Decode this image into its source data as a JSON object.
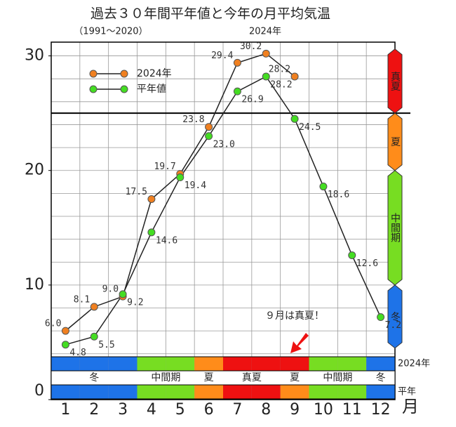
{
  "chart_data": {
    "type": "line",
    "title": "過去３０年間平年値と今年の月平均気温",
    "subtitle": "（1991～2020）",
    "year_label": "2024年",
    "x_label": "月",
    "categories": [
      "1",
      "2",
      "3",
      "4",
      "5",
      "6",
      "7",
      "8",
      "9",
      "10",
      "11",
      "12"
    ],
    "series": [
      {
        "name": "2024年",
        "color": "#f08020",
        "values": [
          6.0,
          8.1,
          9.0,
          17.5,
          19.7,
          23.8,
          29.4,
          30.2,
          28.2,
          null,
          null,
          null
        ],
        "value_labels": [
          "6.0",
          "8.1",
          "9.0",
          "17.5",
          "19.7",
          "23.8",
          "29.4",
          "30.2",
          "28.2",
          null,
          null,
          null
        ]
      },
      {
        "name": "平年値",
        "color": "#44dd22",
        "values": [
          4.8,
          5.5,
          9.2,
          14.6,
          19.4,
          23.0,
          26.9,
          28.2,
          24.5,
          18.6,
          12.6,
          7.2
        ],
        "value_labels": [
          "4.8",
          "5.5",
          "9.2",
          "14.6",
          "19.4",
          "23.0",
          "26.9",
          "28.2",
          "24.5",
          "18.6",
          "12.6",
          "7.2"
        ]
      }
    ],
    "ylim": [
      0,
      31.2
    ],
    "yticks": [
      0,
      10,
      20,
      30
    ],
    "grid_yticks": [
      2,
      4,
      6,
      8,
      10,
      12,
      14,
      16,
      18,
      20,
      22,
      24,
      26,
      28,
      30
    ],
    "reference_line": 25,
    "season_scale": [
      {
        "label": "真夏",
        "from": 25,
        "to": 30.6,
        "color": "#ee1111"
      },
      {
        "label": "夏",
        "from": 20,
        "to": 25,
        "color": "#ff8c1a"
      },
      {
        "label": "中間期",
        "from": 10,
        "to": 20,
        "color": "#77dd22"
      },
      {
        "label": "冬",
        "from": 4.5,
        "to": 10,
        "color": "#1e73e8"
      }
    ],
    "season_rows": [
      {
        "name": "2024年",
        "colors": [
          "#1e73e8",
          "#1e73e8",
          "#1e73e8",
          "#77dd22",
          "#77dd22",
          "#ff8c1a",
          "#ee1111",
          "#ee1111",
          "#ee1111",
          "#77dd22",
          "#77dd22",
          "#1e73e8"
        ]
      },
      {
        "name": "平年",
        "colors": [
          "#1e73e8",
          "#1e73e8",
          "#1e73e8",
          "#77dd22",
          "#77dd22",
          "#ff8c1a",
          "#ee1111",
          "#ee1111",
          "#ff8c1a",
          "#77dd22",
          "#77dd22",
          "#1e73e8"
        ]
      }
    ],
    "season_labels": [
      {
        "text": "冬",
        "from": 1,
        "to": 3
      },
      {
        "text": "中間期",
        "from": 4,
        "to": 5
      },
      {
        "text": "夏",
        "from": 6,
        "to": 6
      },
      {
        "text": "真夏",
        "from": 7,
        "to": 8
      },
      {
        "text": "夏",
        "from": 9,
        "to": 9
      },
      {
        "text": "中間期",
        "from": 10,
        "to": 11
      },
      {
        "text": "冬",
        "from": 12,
        "to": 12
      }
    ],
    "annotation": "９月は真夏！"
  }
}
